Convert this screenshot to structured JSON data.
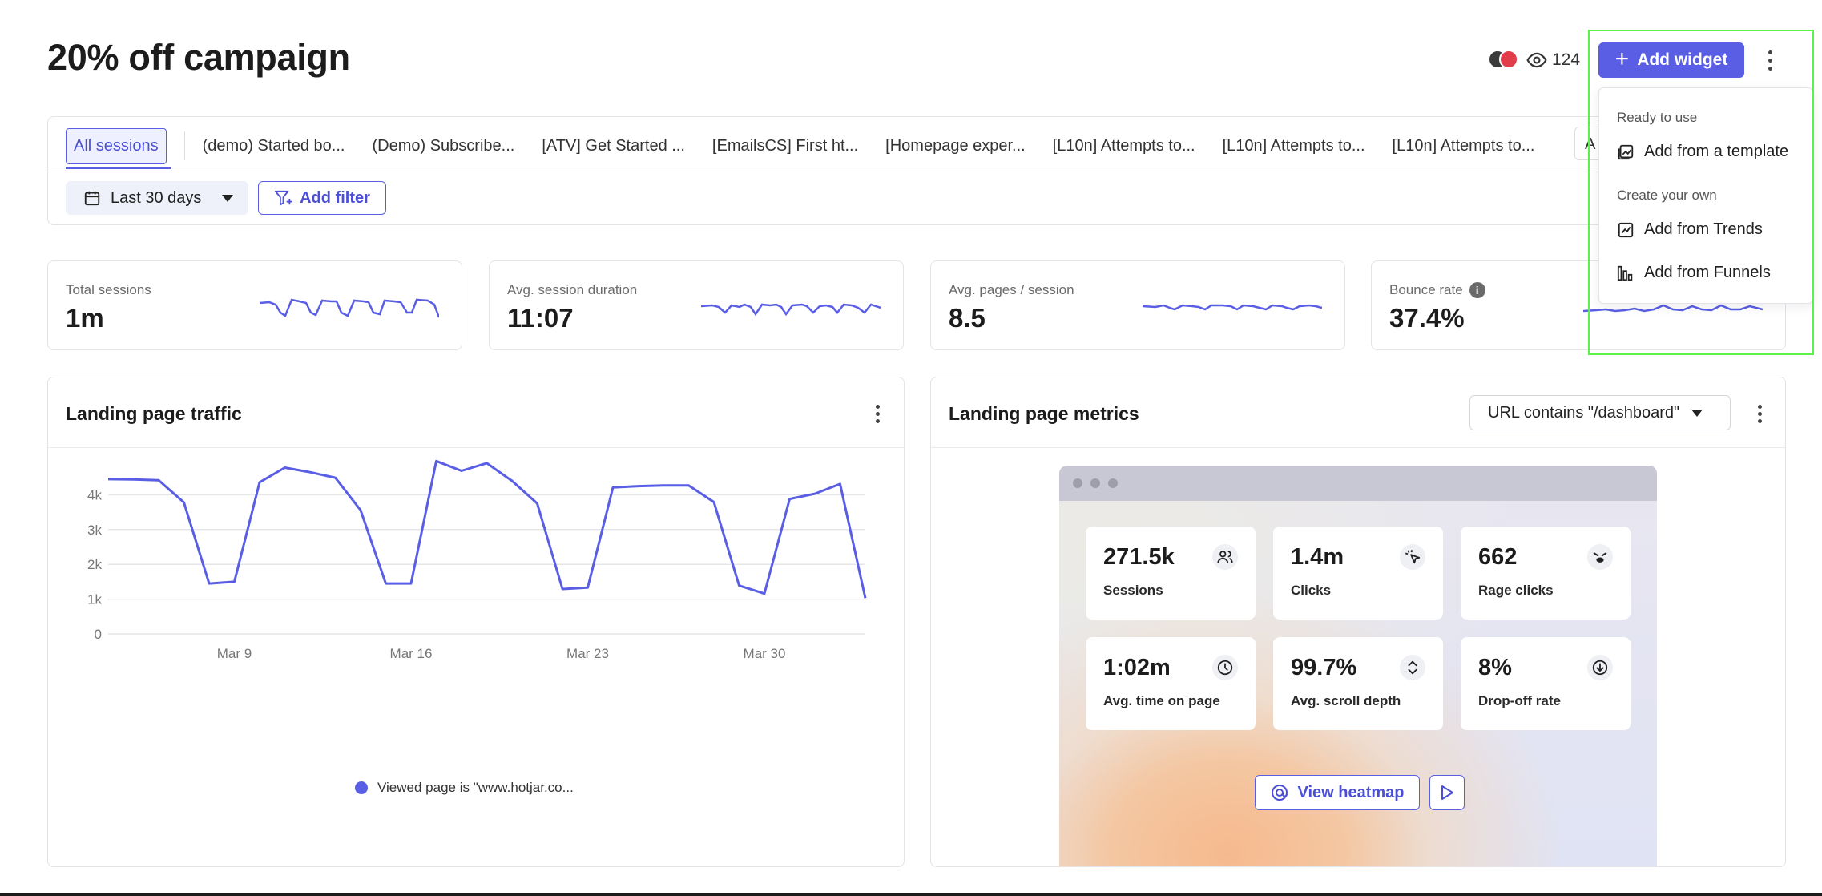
{
  "page": {
    "title": "20% off campaign"
  },
  "header": {
    "viewers_count": "124",
    "add_widget_label": "Add widget"
  },
  "dropdown": {
    "section_ready": "Ready to use",
    "add_template": "Add from a template",
    "section_create": "Create your own",
    "add_trends": "Add from Trends",
    "add_funnels": "Add from Funnels"
  },
  "segments": [
    "All sessions",
    "(demo) Started bo...",
    "(Demo) Subscribe...",
    "[ATV] Get Started ...",
    "[EmailsCS] First ht...",
    "[Homepage exper...",
    "[L10n] Attempts to...",
    "[L10n] Attempts to...",
    "[L10n] Attempts to...",
    "A"
  ],
  "filters": {
    "date_range": "Last 30 days",
    "add_filter": "Add filter"
  },
  "kpis": [
    {
      "label": "Total sessions",
      "value": "1m"
    },
    {
      "label": "Avg. session duration",
      "value": "11:07"
    },
    {
      "label": "Avg. pages / session",
      "value": "8.5"
    },
    {
      "label": "Bounce rate",
      "value": "37.4%"
    }
  ],
  "traffic_panel": {
    "title": "Landing page traffic",
    "legend": "Viewed page is \"www.hotjar.co..."
  },
  "chart_data": {
    "type": "line",
    "title": "Landing page traffic",
    "x_ticks": [
      "Mar 9",
      "Mar 16",
      "Mar 23",
      "Mar 30"
    ],
    "y_ticks": [
      "0",
      "1k",
      "2k",
      "3k",
      "4k"
    ],
    "ylim": [
      0,
      5000
    ],
    "grid": true,
    "legend_placement": "bottom",
    "series": [
      {
        "name": "Viewed page is \"www.hotjar.co...",
        "values": [
          4450,
          4440,
          4420,
          3780,
          1450,
          1500,
          4360,
          4780,
          4650,
          4490,
          3560,
          1450,
          1450,
          4970,
          4690,
          4910,
          4400,
          3750,
          1290,
          1330,
          4210,
          4250,
          4270,
          4270,
          3790,
          1390,
          1160,
          3880,
          4030,
          4310,
          1030
        ],
        "color": "#5a5ee5"
      }
    ]
  },
  "metrics_panel": {
    "title": "Landing page metrics",
    "url_filter": "URL contains \"/dashboard\"",
    "metrics": [
      {
        "value": "271.5k",
        "label": "Sessions",
        "icon": "users-icon"
      },
      {
        "value": "1.4m",
        "label": "Clicks",
        "icon": "click-icon"
      },
      {
        "value": "662",
        "label": "Rage clicks",
        "icon": "angry-face-icon"
      },
      {
        "value": "1:02m",
        "label": "Avg. time on page",
        "icon": "clock-icon"
      },
      {
        "value": "99.7%",
        "label": "Avg. scroll depth",
        "icon": "scroll-icon"
      },
      {
        "value": "8%",
        "label": "Drop-off rate",
        "icon": "arrow-down-circle-icon"
      }
    ],
    "view_heatmap": "View heatmap"
  },
  "colors": {
    "accent": "#5a5ee5",
    "highlight": "#5cf24a"
  }
}
